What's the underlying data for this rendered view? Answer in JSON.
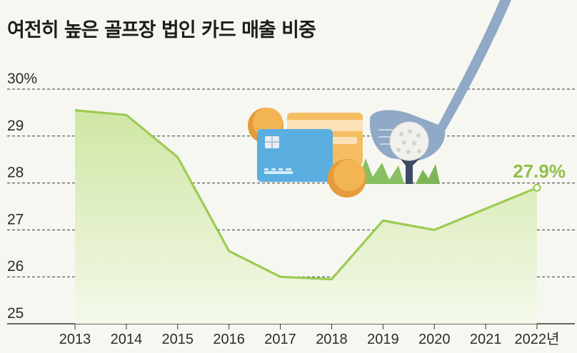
{
  "title": "여전히 높은 골프장 법인 카드 매출 비중",
  "colors": {
    "line": "#9ccb52",
    "fill_top": "#cfe6a4",
    "fill_bottom": "#f4f9ea",
    "grid": "#333333",
    "annotation": "#8fc04a",
    "background": "#f7f7f2"
  },
  "icons": [
    "credit-card-icon",
    "coin-icon",
    "golf-club-icon",
    "golf-ball-icon",
    "golf-tee-icon",
    "grass-icon"
  ],
  "chart_data": {
    "type": "area",
    "title": "여전히 높은 골프장 법인 카드 매출 비중",
    "x": [
      "2013",
      "2014",
      "2015",
      "2016",
      "2017",
      "2018",
      "2019",
      "2020",
      "2021",
      "2022년"
    ],
    "x_tick_labels": [
      "2013",
      "2014",
      "2015",
      "2016",
      "2017",
      "2018",
      "2019",
      "2020",
      "2021",
      "2022년"
    ],
    "y_tick_labels": [
      "25",
      "26",
      "27",
      "28",
      "29",
      "30%"
    ],
    "ylim": [
      25,
      30
    ],
    "yticks": [
      25,
      26,
      27,
      28,
      29,
      30
    ],
    "grid": "horizontal dashed",
    "series": [
      {
        "values": [
          29.55,
          29.45,
          28.55,
          26.55,
          26.0,
          25.95,
          27.2,
          27.0,
          27.45,
          27.9
        ]
      }
    ],
    "annotations": [
      {
        "index": 9,
        "text": "27.9%"
      }
    ]
  }
}
